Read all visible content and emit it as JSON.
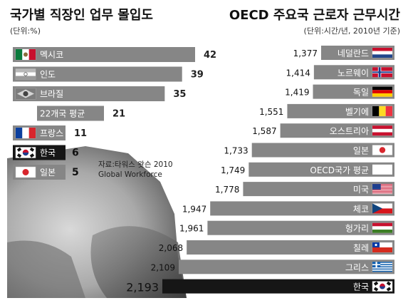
{
  "chart_data": [
    {
      "type": "bar",
      "orientation": "horizontal",
      "title": "국가별 직장인 업무 몰입도",
      "unit_label": "(단위:%)",
      "source": "자료:타워스 왓슨 2010\nGlobal Workforce",
      "categories": [
        "멕시코",
        "인도",
        "브라질",
        "22개국 평균",
        "프랑스",
        "한국",
        "일본"
      ],
      "values": [
        42,
        39,
        35,
        21,
        11,
        6,
        5
      ],
      "value_labels": [
        "42",
        "39",
        "35",
        "21",
        "11",
        "6",
        "5"
      ],
      "flags": [
        "mexico",
        "india",
        "brazil",
        "none",
        "france",
        "korea",
        "japan"
      ],
      "highlight": "한국",
      "xlim": [
        0,
        42
      ],
      "colors": {
        "bar": "#868686",
        "highlight": "#161616",
        "label": "#ffffff",
        "value": "#222222"
      }
    },
    {
      "type": "bar",
      "orientation": "horizontal",
      "title": "OECD 주요국 근로자 근무시간",
      "unit_label": "(단위:시간/년, 2010년 기준)",
      "categories": [
        "네덜란드",
        "노르웨이",
        "독일",
        "벨기에",
        "오스트리아",
        "일본",
        "OECD국가 평균",
        "미국",
        "체코",
        "헝가리",
        "칠레",
        "그리스",
        "한국"
      ],
      "values": [
        1377,
        1414,
        1419,
        1551,
        1587,
        1733,
        1749,
        1778,
        1947,
        1961,
        2068,
        2109,
        2193
      ],
      "value_labels": [
        "1,377",
        "1,414",
        "1,419",
        "1,551",
        "1,587",
        "1,733",
        "1,749",
        "1,778",
        "1,947",
        "1,961",
        "2,068",
        "2,109",
        "2,193"
      ],
      "flags": [
        "netherlands",
        "norway",
        "germany",
        "belgium",
        "austria",
        "japan",
        "none",
        "usa",
        "czech",
        "hungary",
        "chile",
        "greece",
        "korea"
      ],
      "highlight": "한국",
      "xlim": [
        1000,
        2193
      ],
      "colors": {
        "bar": "#868686",
        "highlight": "#161616",
        "label": "#ffffff",
        "value": "#222222"
      }
    }
  ]
}
